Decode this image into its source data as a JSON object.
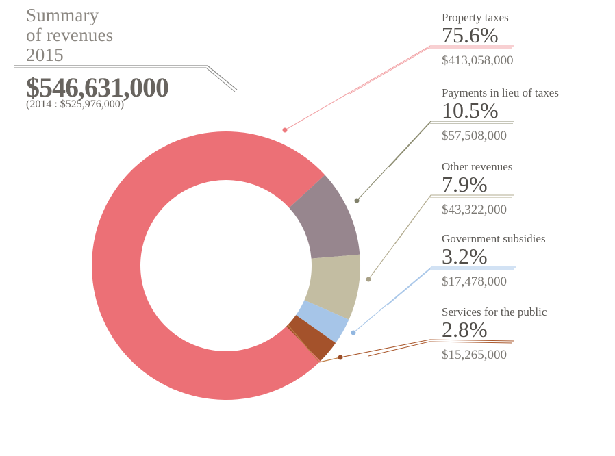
{
  "header": {
    "title_line1": "Summary",
    "title_line2": "of revenues",
    "title_line3": "2015",
    "total": "$546,631,000",
    "previous_year_note": "(2014 : $525,976,000)"
  },
  "chart_data": {
    "type": "pie",
    "subtype": "donut",
    "title": "Summary of revenues 2015",
    "total_label": "$546,631,000",
    "previous_total_label": "(2014 : $525,976,000)",
    "categories": [
      "Property taxes",
      "Payments in lieu of taxes",
      "Other revenues",
      "Government subsidies",
      "Services for the public"
    ],
    "values": [
      413058000,
      57508000,
      43322000,
      17478000,
      15265000
    ],
    "percents": [
      75.6,
      10.5,
      7.9,
      3.2,
      2.8
    ],
    "legend_position": "right",
    "segments": [
      {
        "label": "Property taxes",
        "percent": 75.6,
        "percent_label": "75.6%",
        "amount": "$413,058,000",
        "color": "#ec7076",
        "leader_color": "#f2a2a5",
        "dot_color": "#ed7a7e"
      },
      {
        "label": "Payments in lieu of taxes",
        "percent": 10.5,
        "percent_label": "10.5%",
        "amount": "$57,508,000",
        "color": "#97868e",
        "leader_color": "#8e8e73",
        "dot_color": "#80806a"
      },
      {
        "label": "Other revenues",
        "percent": 7.9,
        "percent_label": "7.9%",
        "amount": "$43,322,000",
        "color": "#c3bda2",
        "leader_color": "#b3ac90",
        "dot_color": "#a8a187"
      },
      {
        "label": "Government subsidies",
        "percent": 3.2,
        "percent_label": "3.2%",
        "amount": "$17,478,000",
        "color": "#a6c5e8",
        "leader_color": "#a6c5e8",
        "dot_color": "#92b7e0"
      },
      {
        "label": "Services for the public",
        "percent": 2.8,
        "percent_label": "2.8%",
        "amount": "$15,265,000",
        "color": "#a4522b",
        "leader_color": "#aa582c",
        "dot_color": "#9c4d26"
      }
    ],
    "colors": {
      "title_text": "#8a8680",
      "total_text": "#68645f",
      "label_text": "#5c5955",
      "percent_text": "#514e4a",
      "amount_text": "#7b7873",
      "title_rule": "#8b8b89",
      "wedge_through_line": "#c08049"
    }
  }
}
